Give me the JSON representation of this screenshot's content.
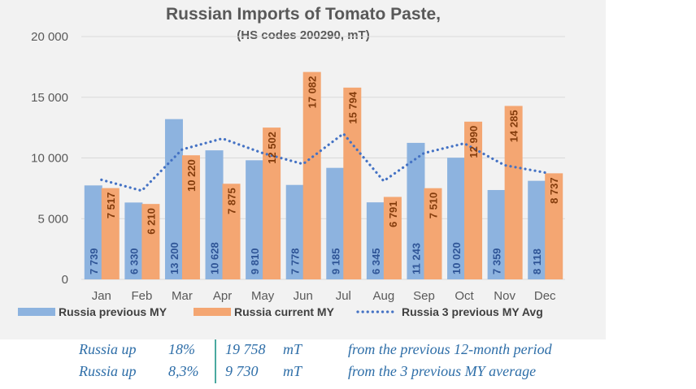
{
  "colors": {
    "previous": "#8db3df",
    "current": "#f4a672",
    "avg_line": "#4472c4",
    "label_previous": "#2f5597",
    "label_current": "#843c0c",
    "grid": "#d9d9d9"
  },
  "chart_data": {
    "type": "bar",
    "title": "Russian Imports of Tomato Paste,",
    "subtitle": "(HS codes 200290, mT)",
    "categories": [
      "Jan",
      "Feb",
      "Mar",
      "Apr",
      "May",
      "Jun",
      "Jul",
      "Aug",
      "Sep",
      "Oct",
      "Nov",
      "Dec"
    ],
    "ylim": [
      0,
      20000
    ],
    "yticks": [
      0,
      5000,
      10000,
      15000,
      20000
    ],
    "ytick_labels": [
      "0",
      "5 000",
      "10 000",
      "15 000",
      "20 000"
    ],
    "grid": true,
    "legend_position": "bottom",
    "series": [
      {
        "name": "Russia previous MY",
        "type": "bar",
        "values": [
          7739,
          6330,
          13200,
          10628,
          9810,
          7778,
          9185,
          6345,
          11243,
          10020,
          7359,
          8118
        ],
        "labels": [
          "7 739",
          "6 330",
          "13 200",
          "10 628",
          "9 810",
          "7 778",
          "9 185",
          "6 345",
          "11 243",
          "10 020",
          "7 359",
          "8 118"
        ]
      },
      {
        "name": "Russia current MY",
        "type": "bar",
        "values": [
          7517,
          6210,
          10220,
          7875,
          12502,
          17082,
          15794,
          6791,
          7510,
          12990,
          14285,
          8737
        ],
        "labels": [
          "7 517",
          "6 210",
          "10 220",
          "7 875",
          "12 502",
          "17 082",
          "15 794",
          "6 791",
          "7 510",
          "12 990",
          "14 285",
          "8 737"
        ]
      },
      {
        "name": "Russia 3 previous MY Avg",
        "type": "line",
        "values": [
          8200,
          7300,
          10700,
          11600,
          10400,
          9500,
          12000,
          8100,
          10400,
          11200,
          9400,
          8800
        ]
      }
    ]
  },
  "summary": {
    "rows": [
      {
        "region": "Russia up",
        "pct": "18%",
        "amount": "19 758",
        "unit": "mT",
        "desc": "from the previous 12-month period"
      },
      {
        "region": "Russia up",
        "pct": "8,3%",
        "amount": "9 730",
        "unit": "mT",
        "desc": "from the 3 previous MY average"
      }
    ]
  }
}
